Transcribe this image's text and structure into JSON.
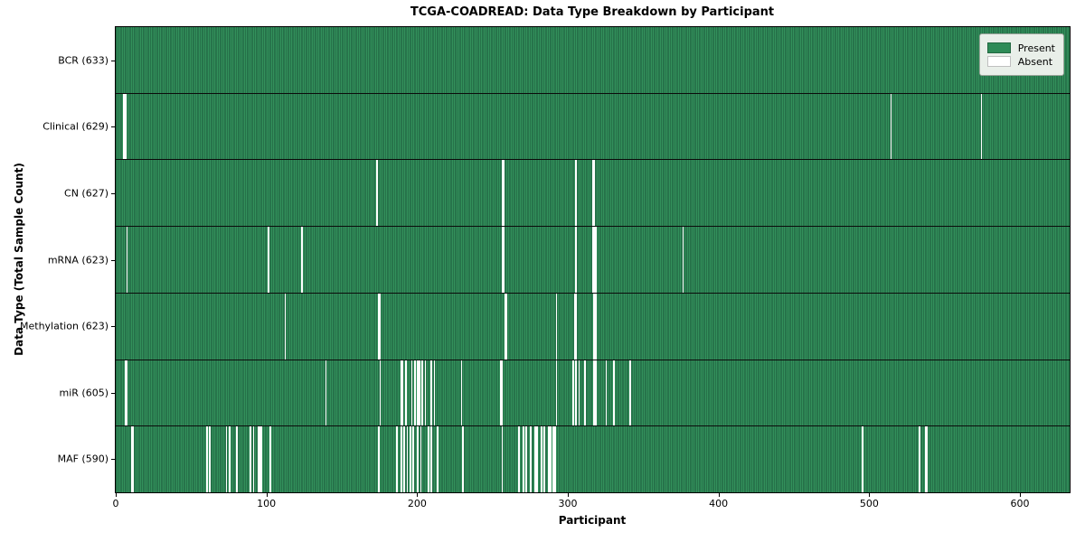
{
  "colors": {
    "present": "#2e8b57",
    "present_dark_edge": "#1c573a",
    "present_light": "#37955f",
    "absent": "#ffffff",
    "axis": "#000000",
    "legend_bg": "#e9efe9",
    "legend_border": "#9aa49a"
  },
  "chart_data": {
    "type": "heatmap",
    "title": "TCGA-COADREAD: Data Type Breakdown by Participant",
    "xlabel": "Participant",
    "ylabel": "Data Type (Total Sample Count)",
    "n_participants": 633,
    "x_ticks": [
      0,
      100,
      200,
      300,
      400,
      500,
      600
    ],
    "legend": [
      {
        "label": "Present",
        "color": "#2e8b57"
      },
      {
        "label": "Absent",
        "color": "#ffffff"
      }
    ],
    "legend_position": "upper right",
    "grid": false,
    "rows": [
      {
        "name": "BCR",
        "label": "BCR (633)",
        "present_count": 633,
        "absent_participants": []
      },
      {
        "name": "Clinical",
        "label": "Clinical (629)",
        "present_count": 629,
        "absent_participants": [
          5,
          6,
          514,
          574
        ]
      },
      {
        "name": "CN",
        "label": "CN (627)",
        "present_count": 627,
        "absent_participants": [
          173,
          256,
          257,
          305,
          316,
          317
        ]
      },
      {
        "name": "mRNA",
        "label": "mRNA (623)",
        "present_count": 623,
        "absent_participants": [
          7,
          101,
          123,
          256,
          257,
          305,
          316,
          317,
          318,
          376
        ]
      },
      {
        "name": "Methylation",
        "label": "Methylation (623)",
        "present_count": 623,
        "absent_participants": [
          112,
          174,
          175,
          258,
          259,
          292,
          304,
          305,
          317,
          318
        ]
      },
      {
        "name": "miR",
        "label": "miR (605)",
        "present_count": 605,
        "absent_participants": [
          6,
          7,
          139,
          175,
          189,
          190,
          192,
          196,
          198,
          200,
          201,
          203,
          205,
          209,
          211,
          229,
          255,
          256,
          292,
          303,
          305,
          307,
          311,
          317,
          318,
          325,
          330,
          341
        ]
      },
      {
        "name": "MAF",
        "label": "MAF (590)",
        "present_count": 590,
        "absent_participants": [
          10,
          11,
          60,
          62,
          73,
          75,
          80,
          89,
          91,
          94,
          95,
          96,
          102,
          174,
          186,
          189,
          191,
          193,
          195,
          197,
          200,
          202,
          207,
          209,
          213,
          230,
          256,
          267,
          270,
          272,
          275,
          278,
          279,
          282,
          284,
          287,
          288,
          290,
          291,
          495,
          533,
          537,
          538
        ]
      }
    ]
  }
}
